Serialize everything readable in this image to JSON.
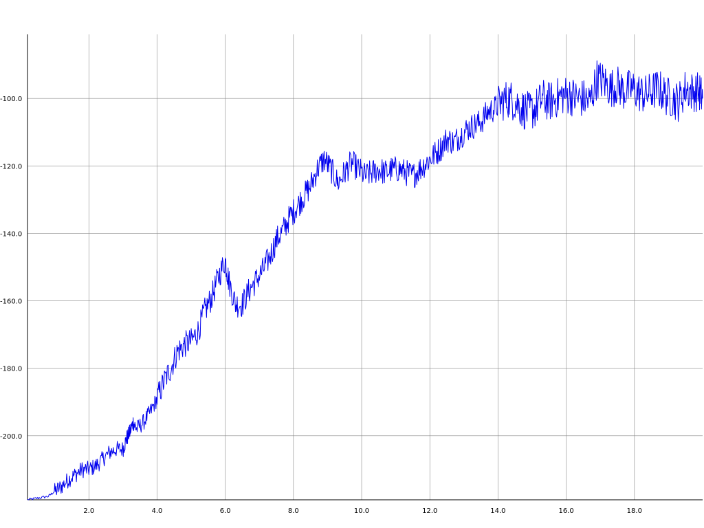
{
  "chart_data": {
    "type": "line",
    "title": "",
    "xlabel": "",
    "ylabel": "",
    "xlim": [
      0.2,
      20.0
    ],
    "ylim": [
      -219,
      -81
    ],
    "grid": true,
    "legend": "none",
    "x_ticks": [
      2.0,
      4.0,
      6.0,
      8.0,
      10.0,
      12.0,
      14.0,
      16.0,
      18.0
    ],
    "x_tick_labels": [
      "2.0",
      "4.0",
      "6.0",
      "8.0",
      "10.0",
      "12.0",
      "14.0",
      "16.0",
      "18.0"
    ],
    "y_ticks": [
      -100.0,
      -120.0,
      -140.0,
      -160.0,
      -180.0,
      -200.0
    ],
    "y_tick_labels": [
      "-100.0",
      "-120.0",
      "-140.0",
      "-160.0",
      "-180.0",
      "-200.0"
    ],
    "series_color": "#0000ee",
    "series": [
      {
        "x": [
          0.2,
          0.5,
          0.8,
          1.0,
          1.2,
          1.4,
          1.6,
          1.8,
          2.0,
          2.2,
          2.4,
          2.6,
          2.8,
          3.0,
          3.1,
          3.2,
          3.3,
          3.4,
          3.6,
          3.8,
          4.0,
          4.2,
          4.4,
          4.6,
          4.8,
          5.0,
          5.2,
          5.4,
          5.6,
          5.8,
          6.0,
          6.1,
          6.3,
          6.5,
          6.7,
          6.9,
          7.1,
          7.3,
          7.5,
          7.7,
          7.9,
          8.1,
          8.3,
          8.5,
          8.7,
          8.9,
          9.1,
          9.3,
          9.5,
          9.7,
          9.9,
          10.1,
          10.3,
          10.5,
          10.7,
          10.9,
          11.1,
          11.3,
          11.5,
          11.7,
          11.9,
          12.1,
          12.3,
          12.5,
          12.7,
          12.9,
          13.1,
          13.3,
          13.5,
          13.7,
          13.9,
          14.1,
          14.3,
          14.5,
          14.7,
          14.9,
          15.1,
          15.3,
          15.5,
          15.7,
          15.9,
          16.1,
          16.3,
          16.5,
          16.7,
          16.9,
          17.1,
          17.3,
          17.5,
          17.7,
          17.9,
          18.1,
          18.3,
          18.5,
          18.7,
          18.9,
          19.1,
          19.3,
          19.5,
          19.7,
          19.9,
          20.0
        ],
        "y": [
          -219,
          -218.5,
          -218,
          -216.5,
          -215,
          -213,
          -211.5,
          -210,
          -210,
          -209,
          -207,
          -205,
          -204,
          -204,
          -201,
          -199,
          -196,
          -198,
          -196,
          -193,
          -189,
          -184,
          -180,
          -175,
          -173,
          -172,
          -169,
          -163,
          -159,
          -153,
          -148,
          -154,
          -161,
          -161,
          -157,
          -154,
          -151,
          -147,
          -142,
          -139,
          -135,
          -132,
          -129,
          -126,
          -121,
          -118,
          -121,
          -125,
          -122,
          -119,
          -121,
          -123,
          -122,
          -121,
          -122,
          -121,
          -121,
          -122,
          -123,
          -121,
          -119,
          -117,
          -115,
          -112,
          -113,
          -111,
          -109,
          -108,
          -107,
          -104,
          -103,
          -101,
          -100,
          -101,
          -103,
          -104,
          -103,
          -100,
          -101,
          -100,
          -99,
          -99,
          -100,
          -100,
          -101,
          -94,
          -95,
          -97,
          -96,
          -98,
          -97,
          -98,
          -99,
          -98,
          -97,
          -99,
          -100,
          -101,
          -97,
          -98,
          -98,
          -100
        ]
      }
    ]
  }
}
